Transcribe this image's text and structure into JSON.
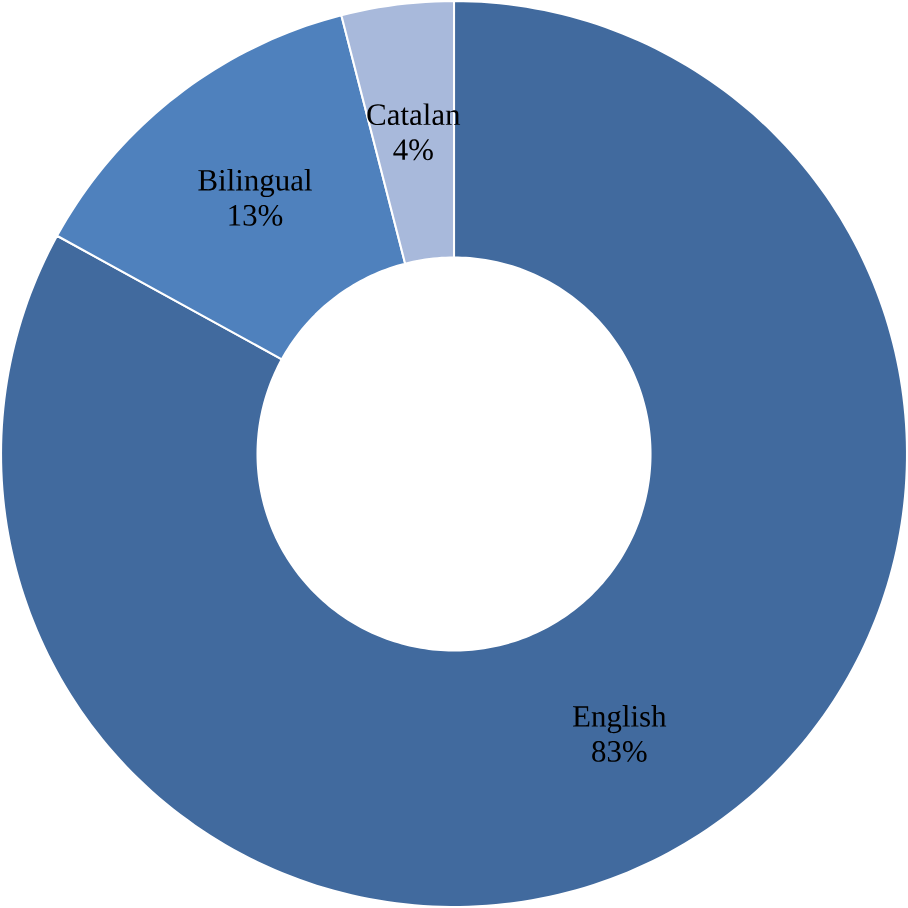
{
  "chart_data": {
    "type": "donut",
    "categories": [
      "English",
      "Bilingual",
      "Catalan"
    ],
    "values": [
      83,
      13,
      4
    ],
    "value_labels": [
      "83%",
      "13%",
      "4%"
    ],
    "colors": [
      "#416a9e",
      "#4f81bd",
      "#a8b9db"
    ]
  }
}
